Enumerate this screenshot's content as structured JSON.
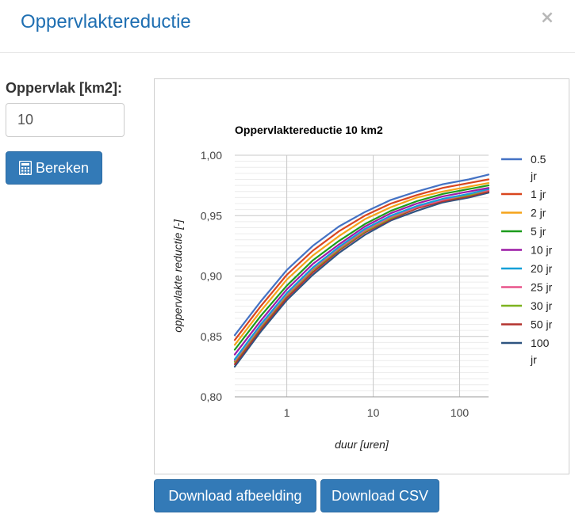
{
  "header": {
    "title": "Oppervlaktereductie",
    "close_symbol": "×"
  },
  "form": {
    "area_label": "Oppervlak [km2]:",
    "area_value": "10",
    "calculate_label": "Bereken"
  },
  "buttons": {
    "download_image": "Download afbeelding",
    "download_csv": "Download CSV"
  },
  "chart_data": {
    "type": "line",
    "title": "Oppervlaktereductie 10 km2",
    "xlabel": "duur [uren]",
    "ylabel": "oppervlakte reductie [-]",
    "x_scale": "log",
    "xlim": [
      0.25,
      216
    ],
    "ylim": [
      0.8,
      1.0
    ],
    "x_ticks": [
      1,
      10,
      100
    ],
    "x_tick_labels": [
      "1",
      "10",
      "100"
    ],
    "y_ticks": [
      0.8,
      0.85,
      0.9,
      0.95,
      1.0
    ],
    "y_tick_labels": [
      "0,80",
      "0,85",
      "0,90",
      "0,95",
      "1,00"
    ],
    "grid": true,
    "legend_position": "right",
    "x": [
      0.25,
      0.5,
      1,
      2,
      4,
      8,
      16,
      32,
      64,
      128,
      216
    ],
    "series": [
      {
        "name": "0.5 jr",
        "name_lines": [
          "0.5",
          "jr"
        ],
        "color": "#4472c4",
        "values": [
          0.851,
          0.879,
          0.905,
          0.925,
          0.941,
          0.953,
          0.963,
          0.97,
          0.976,
          0.98,
          0.984
        ]
      },
      {
        "name": "1 jr",
        "name_lines": [
          "1 jr"
        ],
        "color": "#d9461e",
        "values": [
          0.847,
          0.875,
          0.901,
          0.921,
          0.937,
          0.95,
          0.96,
          0.967,
          0.973,
          0.977,
          0.98
        ]
      },
      {
        "name": "2 jr",
        "name_lines": [
          "2 jr"
        ],
        "color": "#f5a31a",
        "values": [
          0.843,
          0.871,
          0.897,
          0.917,
          0.933,
          0.947,
          0.957,
          0.965,
          0.97,
          0.974,
          0.977
        ]
      },
      {
        "name": "5 jr",
        "name_lines": [
          "5 jr"
        ],
        "color": "#1c9b1c",
        "values": [
          0.839,
          0.867,
          0.892,
          0.913,
          0.929,
          0.943,
          0.954,
          0.962,
          0.968,
          0.972,
          0.975
        ]
      },
      {
        "name": "10 jr",
        "name_lines": [
          "10 jr"
        ],
        "color": "#9c1ba6",
        "values": [
          0.835,
          0.863,
          0.889,
          0.91,
          0.926,
          0.941,
          0.952,
          0.96,
          0.966,
          0.97,
          0.973
        ]
      },
      {
        "name": "20 jr",
        "name_lines": [
          "20 jr"
        ],
        "color": "#12a0d8",
        "values": [
          0.831,
          0.86,
          0.886,
          0.907,
          0.924,
          0.939,
          0.95,
          0.958,
          0.964,
          0.968,
          0.972
        ]
      },
      {
        "name": "25 jr",
        "name_lines": [
          "25 jr"
        ],
        "color": "#e8548a",
        "values": [
          0.83,
          0.859,
          0.885,
          0.906,
          0.923,
          0.938,
          0.949,
          0.957,
          0.963,
          0.968,
          0.971
        ]
      },
      {
        "name": "30 jr",
        "name_lines": [
          "30 jr"
        ],
        "color": "#7db31f",
        "values": [
          0.829,
          0.858,
          0.884,
          0.905,
          0.922,
          0.937,
          0.948,
          0.957,
          0.963,
          0.967,
          0.971
        ]
      },
      {
        "name": "50 jr",
        "name_lines": [
          "50 jr"
        ],
        "color": "#b3332e",
        "values": [
          0.827,
          0.856,
          0.882,
          0.903,
          0.921,
          0.936,
          0.947,
          0.956,
          0.962,
          0.966,
          0.97
        ]
      },
      {
        "name": "100 jr",
        "name_lines": [
          "100",
          "jr"
        ],
        "color": "#2e5480",
        "values": [
          0.825,
          0.854,
          0.88,
          0.901,
          0.919,
          0.934,
          0.946,
          0.954,
          0.961,
          0.965,
          0.969
        ]
      }
    ]
  }
}
